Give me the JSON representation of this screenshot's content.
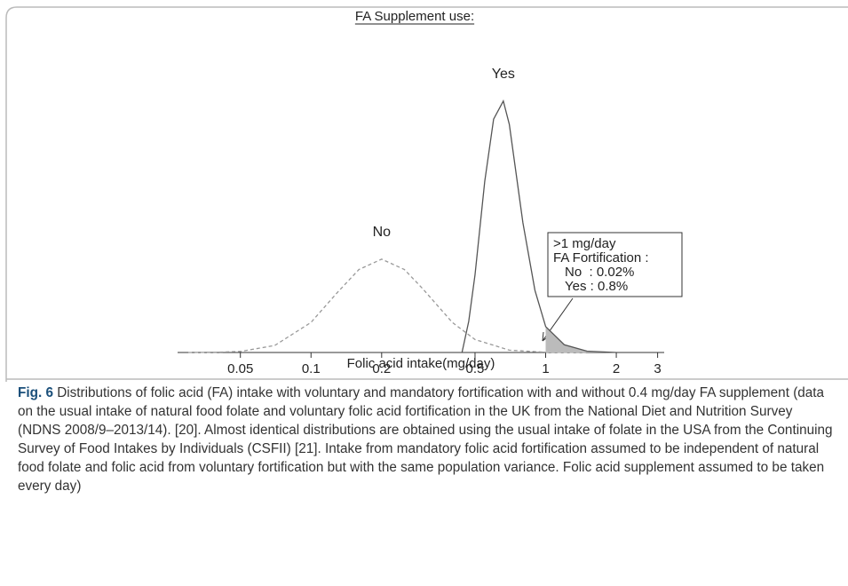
{
  "chart_data": {
    "type": "line",
    "title": "FA Supplement  use:",
    "x_label": "Folic acid intake(mg/day)",
    "x_log": true,
    "xlim": [
      0.027,
      3.2
    ],
    "xticks": [
      0.05,
      0.1,
      0.2,
      0.5,
      1,
      2,
      3
    ],
    "ylim": [
      0,
      1
    ],
    "shaded_from": 1,
    "series": [
      {
        "name": "No",
        "color": "#999999",
        "dashed": true,
        "x": [
          0.03,
          0.04,
          0.05,
          0.07,
          0.1,
          0.13,
          0.16,
          0.2,
          0.25,
          0.3,
          0.4,
          0.5,
          0.7,
          1,
          1.5
        ],
        "values": [
          0,
          0.001,
          0.004,
          0.027,
          0.116,
          0.233,
          0.32,
          0.36,
          0.32,
          0.245,
          0.116,
          0.05,
          0.009,
          0.001,
          0
        ]
      },
      {
        "name": "Yes",
        "color": "#555555",
        "dashed": false,
        "x": [
          0.44,
          0.47,
          0.5,
          0.55,
          0.6,
          0.66,
          0.7,
          0.8,
          0.9,
          1,
          1.2,
          1.5,
          2
        ],
        "values": [
          0,
          0.12,
          0.3,
          0.66,
          0.9,
          0.97,
          0.88,
          0.5,
          0.24,
          0.1,
          0.03,
          0.005,
          0
        ]
      }
    ],
    "annotation": [
      ">1 mg/day",
      "FA Fortification :",
      "No  : 0.02%",
      "Yes : 0.8%"
    ]
  },
  "caption": {
    "label": "Fig. 6",
    "text": "Distributions of folic acid (FA) intake with voluntary and mandatory fortification with and without 0.4 mg/day FA supplement (data on the usual intake of natural food folate and voluntary folic acid fortification in the UK from the National Diet and Nutrition Survey (NDNS 2008/9–2013/14). [20]. Almost identical distributions are obtained using the usual intake of folate in the USA from the Continuing Survey of Food Intakes by Individuals (CSFII) [21]. Intake from mandatory folic acid fortification assumed to be independent of natural food folate and folic acid from voluntary fortification but with the same population variance. Folic acid supplement assumed to be taken every day)"
  }
}
